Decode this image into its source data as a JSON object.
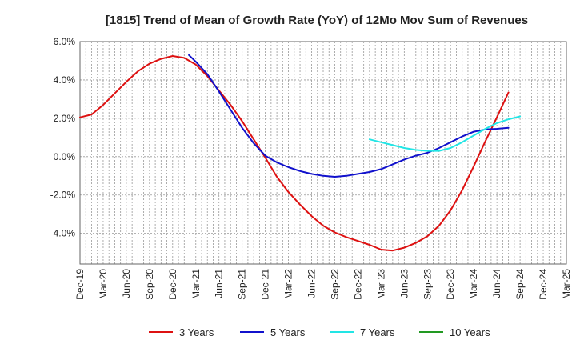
{
  "chart_data": {
    "type": "line",
    "title": "[1815]  Trend of Mean of Growth Rate (YoY) of 12Mo Mov Sum of Revenues",
    "xlabel": "",
    "ylabel": "",
    "ylim": [
      -5.6,
      6.0
    ],
    "yticks": [
      6.0,
      4.0,
      2.0,
      0.0,
      -2.0,
      -4.0
    ],
    "ytick_labels": [
      "6.0%",
      "4.0%",
      "2.0%",
      "0.0%",
      "-2.0%",
      "-4.0%"
    ],
    "x_categories": [
      "Dec-19",
      "Mar-20",
      "Jun-20",
      "Sep-20",
      "Dec-20",
      "Mar-21",
      "Jun-21",
      "Sep-21",
      "Dec-21",
      "Mar-22",
      "Jun-22",
      "Sep-22",
      "Dec-22",
      "Mar-23",
      "Jun-23",
      "Sep-23",
      "Dec-23",
      "Mar-24",
      "Jun-24",
      "Sep-24",
      "Dec-24",
      "Mar-25"
    ],
    "grid": true,
    "legend_position": "bottom",
    "series": [
      {
        "name": "3 Years",
        "color": "#dd1111",
        "points": [
          [
            0,
            2.05
          ],
          [
            0.5,
            2.2
          ],
          [
            1,
            2.7
          ],
          [
            1.5,
            3.3
          ],
          [
            2,
            3.9
          ],
          [
            2.5,
            4.45
          ],
          [
            3,
            4.85
          ],
          [
            3.5,
            5.1
          ],
          [
            4,
            5.25
          ],
          [
            4.5,
            5.15
          ],
          [
            5,
            4.8
          ],
          [
            5.5,
            4.2
          ],
          [
            6,
            3.45
          ],
          [
            6.5,
            2.7
          ],
          [
            7,
            1.85
          ],
          [
            7.5,
            0.9
          ],
          [
            8,
            -0.05
          ],
          [
            8.5,
            -1.05
          ],
          [
            9,
            -1.85
          ],
          [
            9.5,
            -2.5
          ],
          [
            10,
            -3.1
          ],
          [
            10.5,
            -3.6
          ],
          [
            11,
            -3.95
          ],
          [
            11.5,
            -4.2
          ],
          [
            12,
            -4.4
          ],
          [
            12.5,
            -4.6
          ],
          [
            13,
            -4.85
          ],
          [
            13.5,
            -4.9
          ],
          [
            14,
            -4.75
          ],
          [
            14.5,
            -4.5
          ],
          [
            15,
            -4.15
          ],
          [
            15.5,
            -3.6
          ],
          [
            16,
            -2.8
          ],
          [
            16.5,
            -1.75
          ],
          [
            17,
            -0.5
          ],
          [
            17.5,
            0.8
          ],
          [
            18,
            2.05
          ],
          [
            18.5,
            3.35
          ]
        ]
      },
      {
        "name": "5 Years",
        "color": "#1111cc",
        "points": [
          [
            4.7,
            5.3
          ],
          [
            5,
            4.95
          ],
          [
            5.5,
            4.3
          ],
          [
            6,
            3.4
          ],
          [
            6.5,
            2.45
          ],
          [
            7,
            1.5
          ],
          [
            7.5,
            0.7
          ],
          [
            8,
            0.05
          ],
          [
            8.5,
            -0.3
          ],
          [
            9,
            -0.55
          ],
          [
            9.5,
            -0.75
          ],
          [
            10,
            -0.9
          ],
          [
            10.5,
            -1.0
          ],
          [
            11,
            -1.05
          ],
          [
            11.5,
            -1.0
          ],
          [
            12,
            -0.9
          ],
          [
            12.5,
            -0.8
          ],
          [
            13,
            -0.65
          ],
          [
            13.5,
            -0.4
          ],
          [
            14,
            -0.15
          ],
          [
            14.5,
            0.05
          ],
          [
            15,
            0.2
          ],
          [
            15.5,
            0.45
          ],
          [
            16,
            0.75
          ],
          [
            16.5,
            1.05
          ],
          [
            17,
            1.3
          ],
          [
            17.5,
            1.42
          ],
          [
            18,
            1.45
          ],
          [
            18.5,
            1.5
          ]
        ]
      },
      {
        "name": "7 Years",
        "color": "#22e5e5",
        "points": [
          [
            12.5,
            0.9
          ],
          [
            13,
            0.75
          ],
          [
            13.5,
            0.6
          ],
          [
            14,
            0.45
          ],
          [
            14.5,
            0.35
          ],
          [
            15,
            0.3
          ],
          [
            15.5,
            0.3
          ],
          [
            16,
            0.45
          ],
          [
            16.5,
            0.75
          ],
          [
            17,
            1.1
          ],
          [
            17.5,
            1.45
          ],
          [
            18,
            1.75
          ],
          [
            18.5,
            1.95
          ],
          [
            19,
            2.1
          ]
        ]
      },
      {
        "name": "10 Years",
        "color": "#229922",
        "points": []
      }
    ]
  }
}
